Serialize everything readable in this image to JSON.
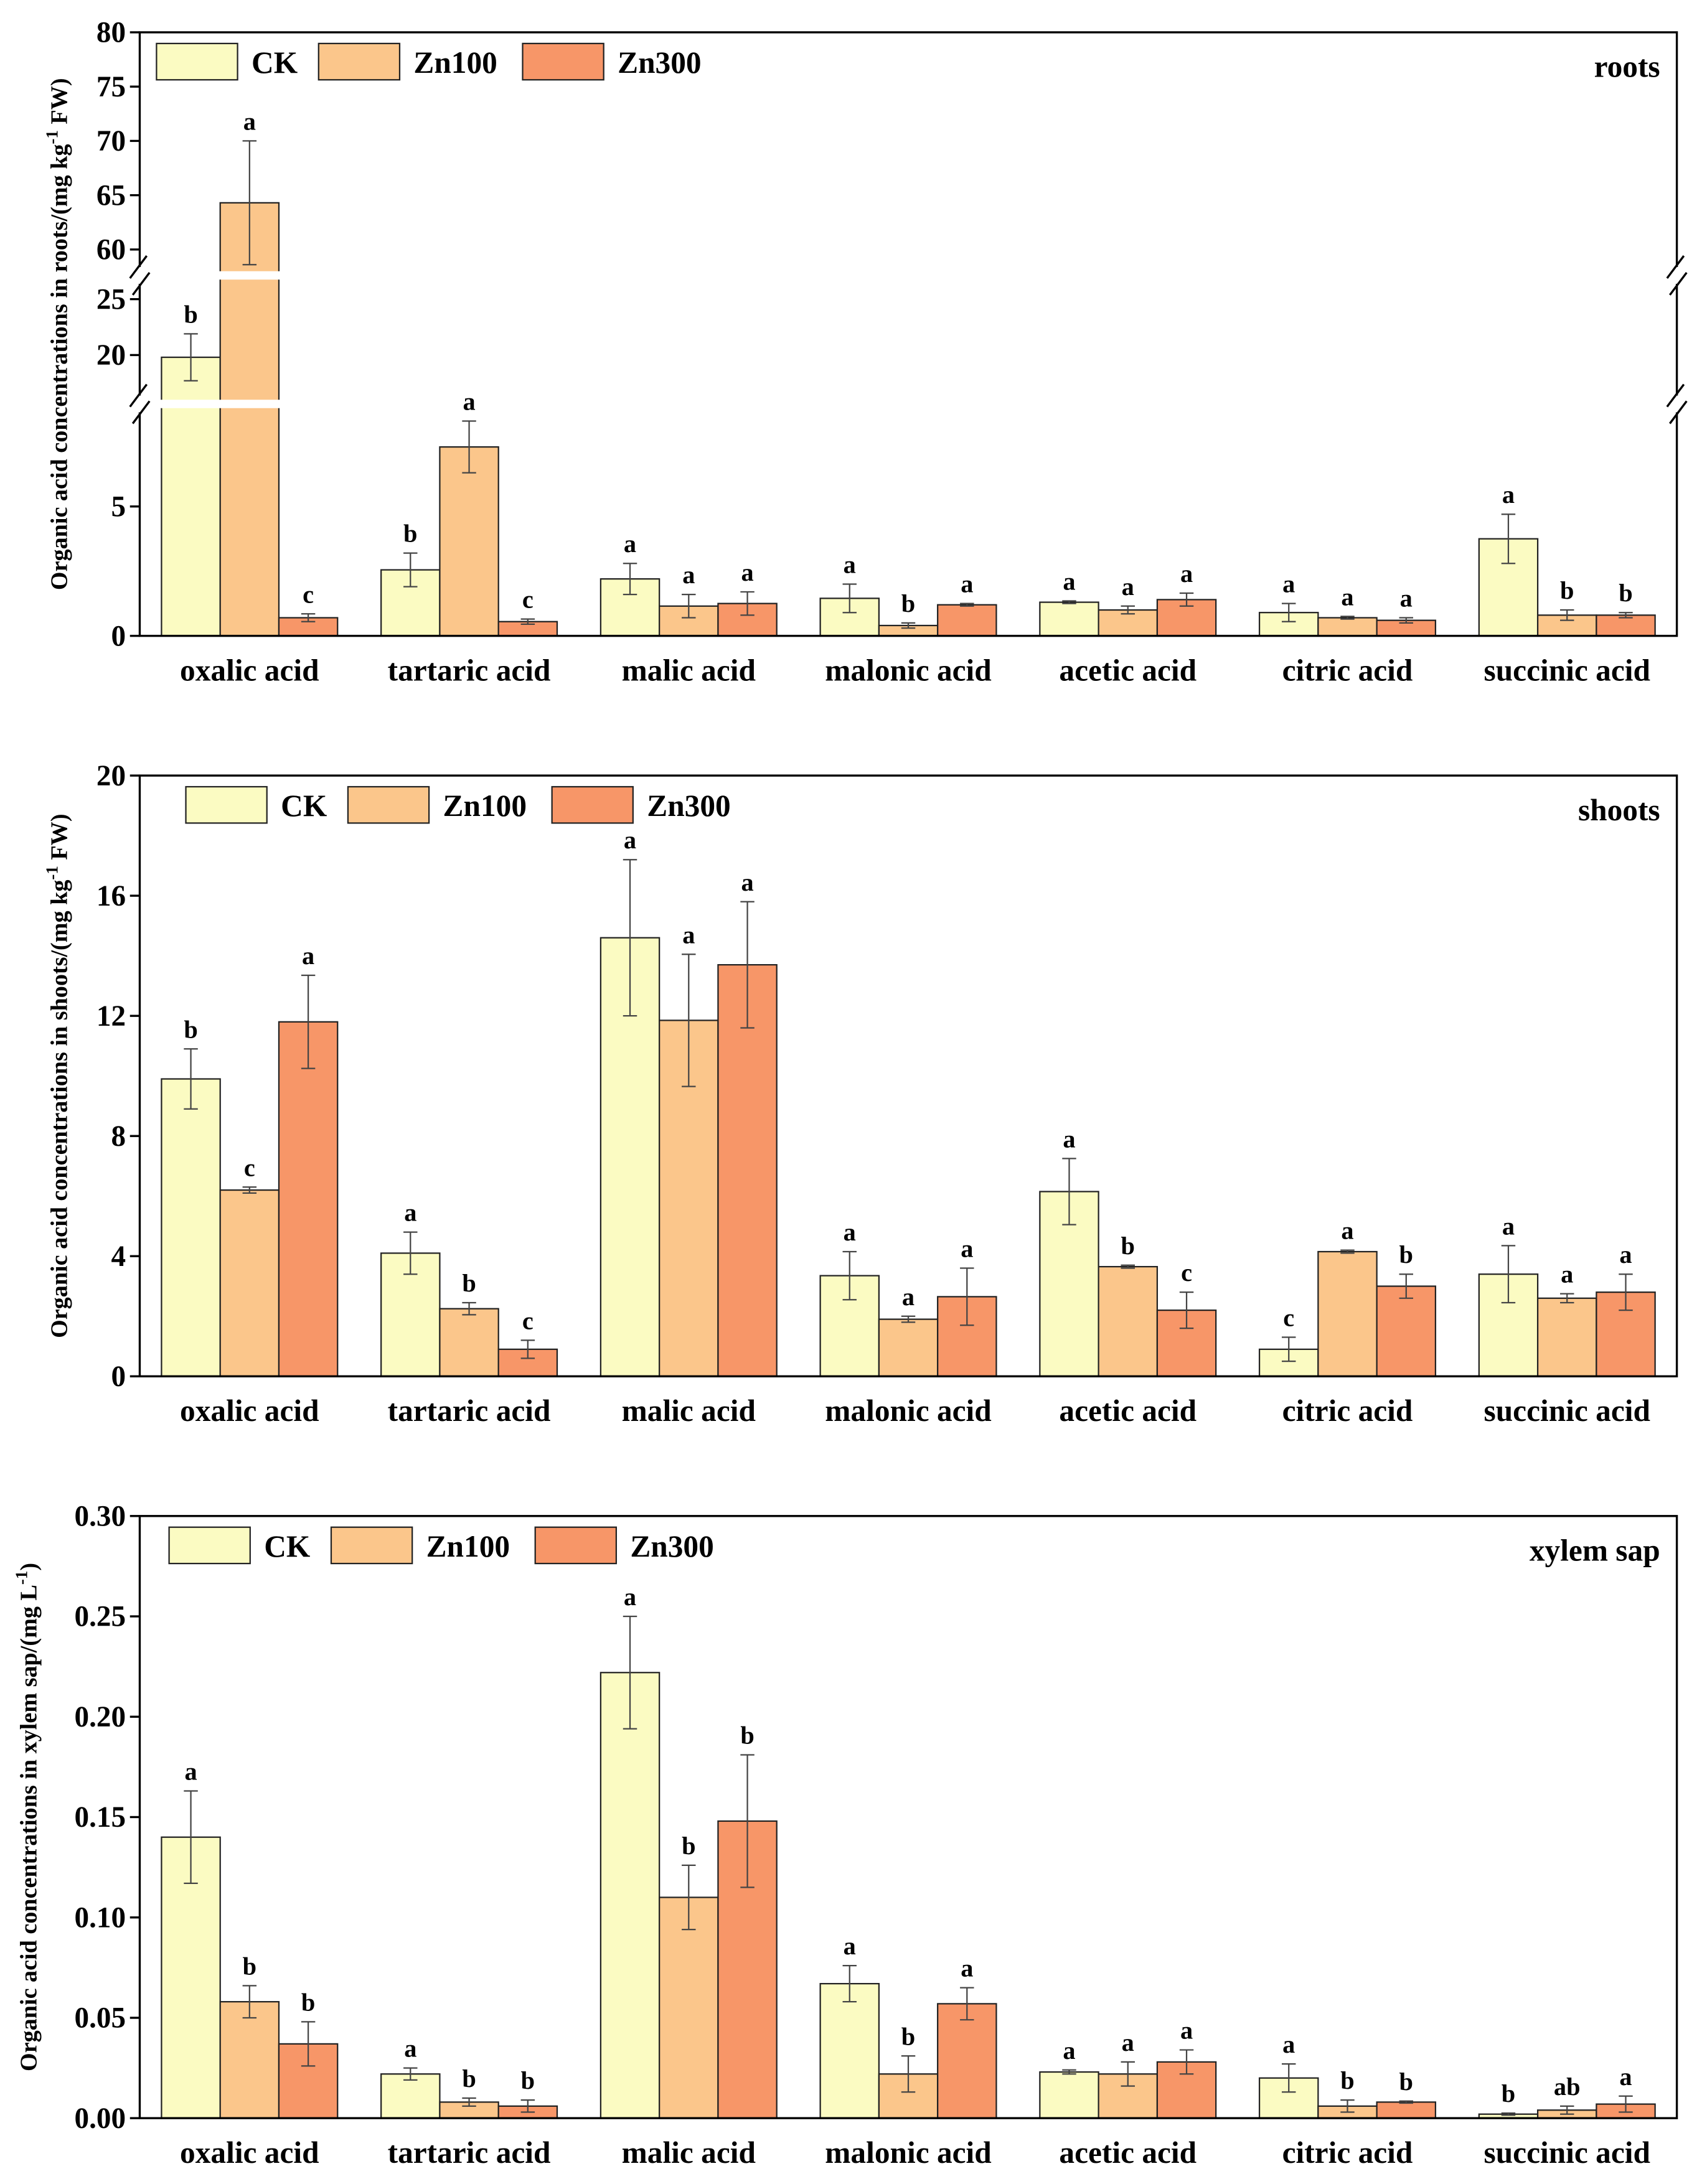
{
  "chart_data": [
    {
      "type": "bar",
      "panel_label": "roots",
      "ylabel": [
        "Organic acid concentrations in roots/(mg kg",
        "-1",
        " FW)"
      ],
      "categories": [
        "oxalic acid",
        "tartaric acid",
        "malic acid",
        "malonic acid",
        "acetic acid",
        "citric acid",
        "succinic acid"
      ],
      "axis_segments": [
        {
          "ylim": [
            0,
            8.8
          ],
          "yticks": [
            0,
            5
          ]
        },
        {
          "ylim": [
            16,
            26.75
          ],
          "yticks": [
            20,
            25
          ]
        },
        {
          "ylim": [
            58,
            80
          ],
          "yticks": [
            60,
            65,
            70,
            75,
            80
          ]
        }
      ],
      "series": [
        {
          "name": "CK",
          "color": "#fbfbc2",
          "values": [
            19.8,
            2.55,
            2.2,
            1.45,
            1.3,
            0.9,
            3.75
          ],
          "errors": [
            2.1,
            0.65,
            0.6,
            0.55,
            0.05,
            0.35,
            0.95
          ],
          "letters": [
            "b",
            "b",
            "a",
            "a",
            "a",
            "a",
            "a"
          ]
        },
        {
          "name": "Zn100",
          "color": "#fbc68b",
          "values": [
            64.3,
            7.3,
            1.15,
            0.4,
            1.0,
            0.7,
            0.8
          ],
          "errors": [
            5.7,
            1.0,
            0.45,
            0.1,
            0.15,
            0.05,
            0.2
          ],
          "letters": [
            "a",
            "a",
            "a",
            "b",
            "a",
            "a",
            "b"
          ]
        },
        {
          "name": "Zn300",
          "color": "#f79668",
          "values": [
            0.7,
            0.55,
            1.25,
            1.2,
            1.4,
            0.6,
            0.8
          ],
          "errors": [
            0.15,
            0.1,
            0.45,
            0.05,
            0.25,
            0.1,
            0.1
          ],
          "letters": [
            "c",
            "c",
            "a",
            "a",
            "a",
            "a",
            "b"
          ]
        }
      ]
    },
    {
      "type": "bar",
      "panel_label": "shoots",
      "ylabel": [
        "Organic acid concentrations in shoots/(mg kg",
        "-1",
        " FW)"
      ],
      "categories": [
        "oxalic acid",
        "tartaric acid",
        "malic acid",
        "malonic acid",
        "acetic acid",
        "citric acid",
        "succinic acid"
      ],
      "ylim": [
        0,
        20
      ],
      "yticks": [
        0,
        4,
        8,
        12,
        16,
        20
      ],
      "series": [
        {
          "name": "CK",
          "color": "#fbfbc2",
          "values": [
            9.9,
            4.1,
            14.6,
            3.35,
            6.15,
            0.9,
            3.4
          ],
          "errors": [
            1.0,
            0.7,
            2.6,
            0.8,
            1.1,
            0.4,
            0.95
          ],
          "letters": [
            "b",
            "a",
            "a",
            "a",
            "a",
            "c",
            "a"
          ]
        },
        {
          "name": "Zn100",
          "color": "#fbc68b",
          "values": [
            6.2,
            2.25,
            11.85,
            1.9,
            3.65,
            4.15,
            2.6
          ],
          "errors": [
            0.1,
            0.2,
            2.2,
            0.1,
            0.05,
            0.05,
            0.15
          ],
          "letters": [
            "c",
            "b",
            "a",
            "a",
            "b",
            "a",
            "a"
          ]
        },
        {
          "name": "Zn300",
          "color": "#f79668",
          "values": [
            11.8,
            0.9,
            13.7,
            2.65,
            2.2,
            3.0,
            2.8
          ],
          "errors": [
            1.55,
            0.3,
            2.1,
            0.95,
            0.6,
            0.4,
            0.6
          ],
          "letters": [
            "a",
            "c",
            "a",
            "a",
            "c",
            "b",
            "a"
          ]
        }
      ]
    },
    {
      "type": "bar",
      "panel_label": "xylem sap",
      "ylabel": [
        "Organic acid concentrations in xylem sap/(mg L",
        "-1",
        ")"
      ],
      "categories": [
        "oxalic acid",
        "tartaric acid",
        "malic acid",
        "malonic acid",
        "acetic acid",
        "citric acid",
        "succinic acid"
      ],
      "ylim": [
        0,
        0.3
      ],
      "yticks": [
        {
          "value": 0,
          "label": "0.00"
        },
        {
          "value": 0.05,
          "label": "0.05"
        },
        {
          "value": 0.1,
          "label": "0.10"
        },
        {
          "value": 0.15,
          "label": "0.15"
        },
        {
          "value": 0.2,
          "label": "0.20"
        },
        {
          "value": 0.25,
          "label": "0.25"
        },
        {
          "value": 0.3,
          "label": "0.30"
        }
      ],
      "series": [
        {
          "name": "CK",
          "color": "#fbfbc2",
          "values": [
            0.14,
            0.022,
            0.222,
            0.067,
            0.023,
            0.02,
            0.002
          ],
          "errors": [
            0.023,
            0.003,
            0.028,
            0.009,
            0.001,
            0.007,
            0.0005
          ],
          "letters": [
            "a",
            "a",
            "a",
            "a",
            "a",
            "a",
            "b"
          ]
        },
        {
          "name": "Zn100",
          "color": "#fbc68b",
          "values": [
            0.058,
            0.008,
            0.11,
            0.022,
            0.022,
            0.006,
            0.004
          ],
          "errors": [
            0.008,
            0.002,
            0.016,
            0.009,
            0.006,
            0.003,
            0.002
          ],
          "letters": [
            "b",
            "b",
            "b",
            "b",
            "a",
            "b",
            "ab"
          ]
        },
        {
          "name": "Zn300",
          "color": "#f79668",
          "values": [
            0.037,
            0.006,
            0.148,
            0.057,
            0.028,
            0.008,
            0.007
          ],
          "errors": [
            0.011,
            0.003,
            0.033,
            0.008,
            0.006,
            0.0005,
            0.004
          ],
          "letters": [
            "b",
            "b",
            "b",
            "a",
            "a",
            "b",
            "a"
          ]
        }
      ]
    }
  ]
}
